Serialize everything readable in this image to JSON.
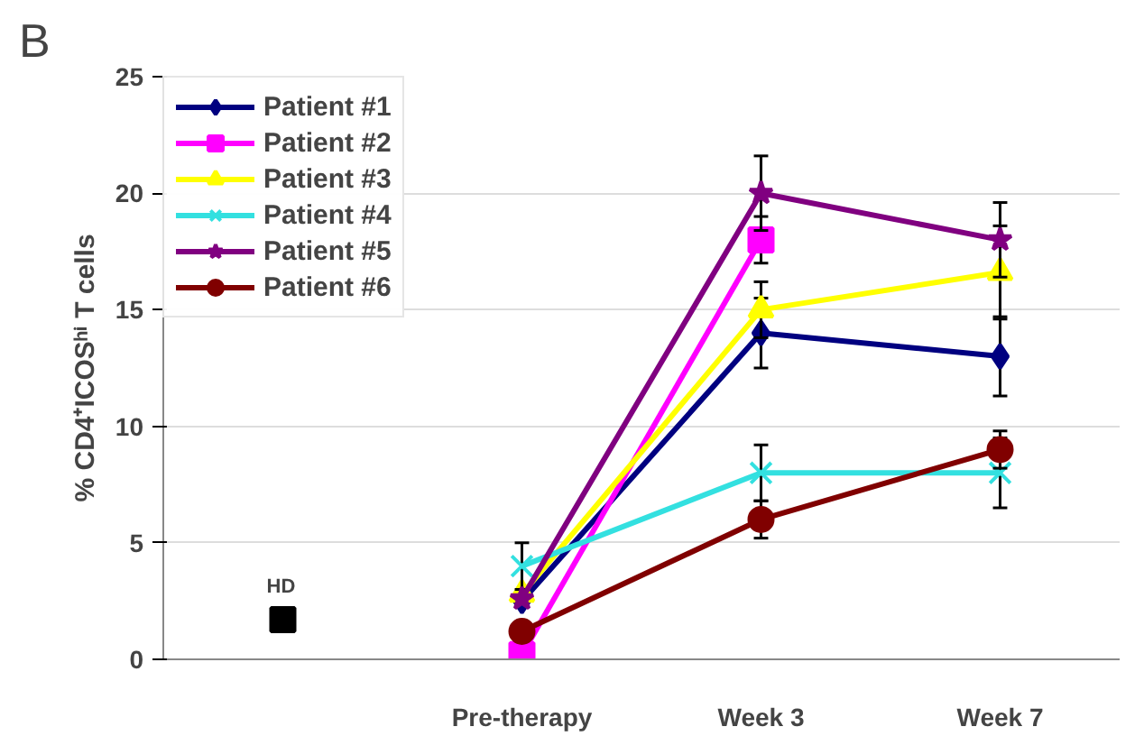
{
  "chart_data": {
    "type": "line",
    "ylabel": "% CD4⁺ICOSʰⁱ T cells",
    "annotations": [
      "B"
    ],
    "categories": [
      null,
      "Pre-therapy",
      "Week 3",
      "Week 7"
    ],
    "ylim": [
      0,
      25
    ],
    "yticks": [
      0,
      5,
      10,
      15,
      20,
      25
    ],
    "grid": "y",
    "legend": "top left",
    "line_style": "solid",
    "series": [
      {
        "name": "Patient #1",
        "color": "#000080",
        "marker": "diamond",
        "values": [
          null,
          2.5,
          14,
          13
        ],
        "errors": [
          null,
          null,
          1.5,
          1.7
        ]
      },
      {
        "name": "Patient #2",
        "color": "#ff00ff",
        "marker": "square",
        "values": [
          null,
          0.2,
          18,
          null
        ],
        "errors": [
          null,
          null,
          1,
          null
        ]
      },
      {
        "name": "Patient #3",
        "color": "#ffff00",
        "marker": "triangle",
        "values": [
          null,
          2.8,
          15,
          16.6
        ],
        "errors": [
          null,
          null,
          1.2,
          2
        ]
      },
      {
        "name": "Patient #4",
        "color": "#33e0e0",
        "marker": "cross",
        "values": [
          null,
          4,
          8,
          8
        ],
        "errors": [
          null,
          1,
          1.2,
          1.5
        ]
      },
      {
        "name": "Patient #5",
        "color": "#800080",
        "marker": "star",
        "values": [
          null,
          2.6,
          20,
          18
        ],
        "errors": [
          null,
          null,
          1.6,
          1.6
        ]
      },
      {
        "name": "Patient #6",
        "color": "#800000",
        "marker": "circle",
        "values": [
          null,
          1.2,
          6,
          9
        ],
        "errors": [
          null,
          null,
          0.8,
          0.8
        ]
      },
      {
        "name": "HD",
        "type": "scatter",
        "color": "#000000",
        "marker": "square",
        "values": [
          1.7,
          null,
          null,
          null
        ]
      }
    ]
  }
}
